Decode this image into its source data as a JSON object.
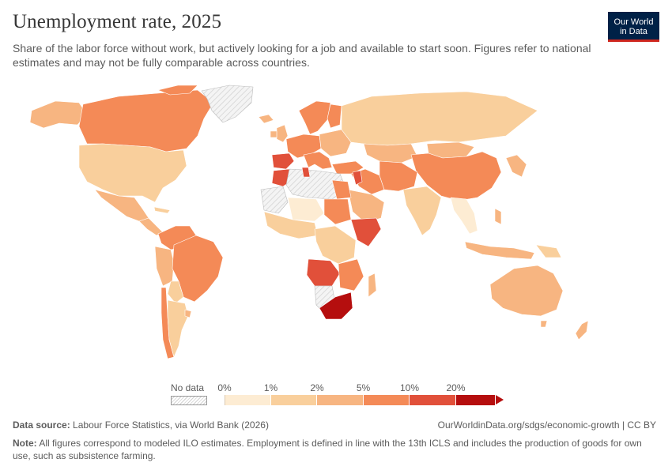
{
  "header": {
    "title": "Unemployment rate, 2025",
    "subtitle": "Share of the labor force without work, but actively looking for a job and available to start soon. Figures refer to national estimates and may not be fully comparable across countries.",
    "logo_line1": "Our World",
    "logo_line2": "in Data"
  },
  "legend": {
    "no_data_label": "No data",
    "ticks": [
      "0%",
      "1%",
      "2%",
      "5%",
      "10%",
      "20%"
    ],
    "bins": [
      {
        "from": "0%",
        "to": "1%",
        "color": "#fdecd3"
      },
      {
        "from": "1%",
        "to": "2%",
        "color": "#f9cf9c"
      },
      {
        "from": "2%",
        "to": "5%",
        "color": "#f7b581"
      },
      {
        "from": "5%",
        "to": "10%",
        "color": "#f48a57"
      },
      {
        "from": "10%",
        "to": "20%",
        "color": "#e1503a"
      },
      {
        "from": "20%",
        "to": "",
        "color": "#b50e0e"
      }
    ]
  },
  "colors": {
    "no_data": "#ececec",
    "bin_0_1": "#fdecd3",
    "bin_1_2": "#f9cf9c",
    "bin_2_5": "#f7b581",
    "bin_5_10": "#f48a57",
    "bin_10_20": "#e1503a",
    "bin_20_plus": "#b50e0e"
  },
  "footer": {
    "source_label": "Data source:",
    "source_text": "Labour Force Statistics, via World Bank (2026)",
    "url": "OurWorldinData.org/sdgs/economic-growth | CC BY",
    "note_label": "Note:",
    "note_text": "All figures correspond to modeled ILO estimates. Employment is defined in line with the 13th ICLS and includes the production of goods for own use, such as subsistence farming."
  }
}
